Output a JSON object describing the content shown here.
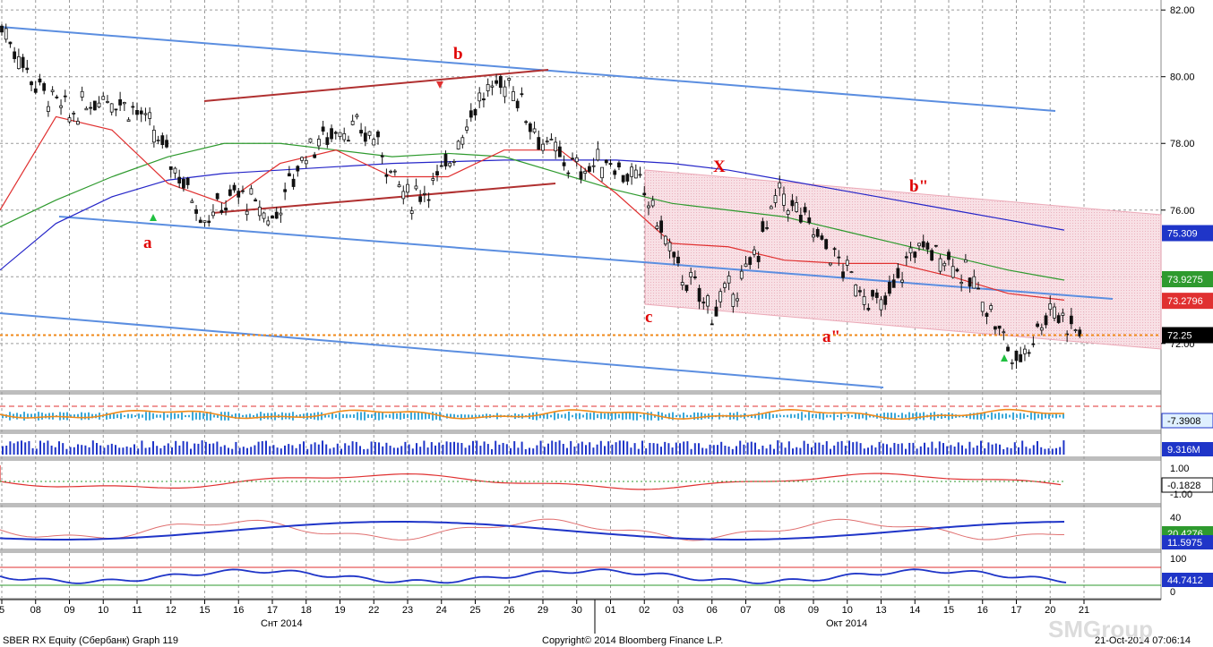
{
  "app": {
    "security": "SBER RX Equity (Сбербанк) Graph 119",
    "copyright": "Copyright© 2014 Bloomberg Finance L.P.",
    "timestamp": "21-Oct-2014 07:06:14",
    "watermark": "SMGroup"
  },
  "chart_data": {
    "type": "line",
    "panels": [
      "price",
      "indicator-1",
      "volume",
      "indicator-2",
      "indicator-3",
      "indicator-4"
    ],
    "x_ticks": [
      "5",
      "08",
      "09",
      "10",
      "11",
      "12",
      "15",
      "16",
      "17",
      "18",
      "19",
      "22",
      "23",
      "24",
      "25",
      "26",
      "29",
      "30",
      "01",
      "02",
      "03",
      "06",
      "07",
      "08",
      "09",
      "10",
      "13",
      "14",
      "15",
      "16",
      "17",
      "20",
      "21"
    ],
    "month_labels": [
      "Снт 2014",
      "Окт 2014"
    ],
    "price": {
      "ylim": [
        70.6,
        82.3
      ],
      "y_ticks": [
        "82.00",
        "80.00",
        "78.00",
        "76.00",
        "74.00",
        "72.00"
      ],
      "close_series": [
        81.5,
        79.8,
        78.8,
        79.5,
        79.0,
        77.5,
        75.8,
        76.5,
        75.7,
        77.8,
        78.5,
        78.2,
        76.3,
        77.0,
        79.2,
        79.9,
        78.0,
        77.2,
        77.5,
        76.6,
        74.2,
        73.0,
        74.0,
        76.5,
        75.4,
        74.1,
        73.0,
        74.9,
        74.6,
        73.4,
        71.4,
        73.1,
        72.25
      ],
      "last_values": [
        {
          "label": "75.309",
          "value": 75.309,
          "color": "#1f35c8"
        },
        {
          "label": "73.9275",
          "value": 73.9275,
          "color": "#2e9a2e"
        },
        {
          "label": "73.2796",
          "value": 73.2796,
          "color": "#e03030"
        },
        {
          "label": "72.25",
          "value": 72.25,
          "color": "#000000"
        }
      ],
      "last_price_line": 72.25,
      "moving_averages": [
        {
          "color": "#2525c8",
          "values": [
            74.2,
            75.6,
            76.4,
            76.9,
            77.1,
            77.2,
            77.3,
            77.4,
            77.45,
            77.5,
            77.5,
            77.5,
            77.4,
            77.2,
            76.9,
            76.6,
            76.3,
            76.0,
            75.7,
            75.4
          ]
        },
        {
          "color": "#2e9a2e",
          "values": [
            75.5,
            76.3,
            77.0,
            77.6,
            78.0,
            78.0,
            77.8,
            77.6,
            77.7,
            77.6,
            77.1,
            76.6,
            76.2,
            76.0,
            75.8,
            75.4,
            75.0,
            74.6,
            74.2,
            73.9
          ]
        },
        {
          "color": "#e03030",
          "values": [
            76.0,
            78.8,
            78.4,
            76.8,
            76.2,
            77.4,
            77.8,
            77.0,
            77.0,
            77.8,
            77.8,
            76.5,
            75.0,
            74.9,
            74.5,
            74.4,
            74.4,
            74.0,
            73.5,
            73.3
          ]
        }
      ],
      "annotations": [
        "a",
        "b",
        "c",
        "X",
        "a\"",
        "b\""
      ]
    },
    "indicators": [
      {
        "name": "indicator-1",
        "last": "-7.3908"
      },
      {
        "name": "volume",
        "last": "9.316M"
      },
      {
        "name": "indicator-2",
        "last": "-0.1828",
        "y_ticks": [
          "1.00",
          "-1.00"
        ]
      },
      {
        "name": "indicator-3",
        "last": "20.4276",
        "last2": "11.5975",
        "y_ticks": [
          "40",
          "20"
        ]
      },
      {
        "name": "indicator-4",
        "last": "44.7412",
        "y_ticks": [
          "100",
          "0"
        ]
      }
    ]
  }
}
